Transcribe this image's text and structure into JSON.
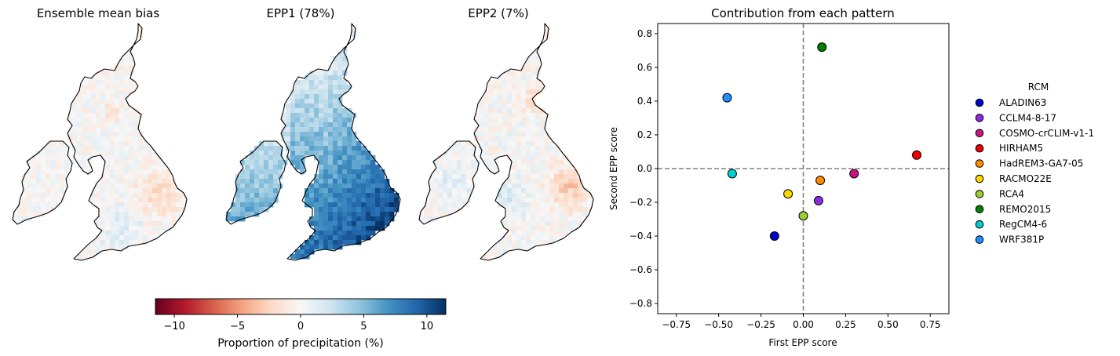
{
  "map_panels": [
    {
      "title": "Ensemble mean bias",
      "pattern": "bias"
    },
    {
      "title": "EPP1 (78%)",
      "pattern": "epp1"
    },
    {
      "title": "EPP2 (7%)",
      "pattern": "epp2"
    }
  ],
  "colorbar": {
    "label": "Proportion of precipitation (%)",
    "range": [
      -11.5,
      11.5
    ],
    "ticks": [
      -10,
      -5,
      0,
      5,
      10
    ],
    "tick_labels": [
      "−10",
      "−5",
      "0",
      "5",
      "10"
    ],
    "colormap": "RdBu",
    "colors": {
      "low": "#67001f",
      "mid": "#f7f7f7",
      "high": "#053061"
    }
  },
  "chart_data": {
    "type": "scatter",
    "title": "Contribution from each pattern",
    "xlabel": "First EPP score",
    "ylabel": "Second EPP score",
    "xlim": [
      -0.86,
      0.86
    ],
    "ylim": [
      -0.86,
      0.86
    ],
    "xticks": [
      -0.75,
      -0.5,
      -0.25,
      0.0,
      0.25,
      0.5,
      0.75
    ],
    "xtick_labels": [
      "−0.75",
      "−0.50",
      "−0.25",
      "0.00",
      "0.25",
      "0.50",
      "0.75"
    ],
    "yticks": [
      -0.8,
      -0.6,
      -0.4,
      -0.2,
      0.0,
      0.2,
      0.4,
      0.6,
      0.8
    ],
    "ytick_labels": [
      "−0.8",
      "−0.6",
      "−0.4",
      "−0.2",
      "0.0",
      "0.2",
      "0.4",
      "0.6",
      "0.8"
    ],
    "reference_lines": {
      "x": 0.0,
      "y": 0.0,
      "style": "dashed",
      "color": "#808080"
    },
    "grid": false,
    "legend": {
      "title": "RCM",
      "placement": "outside-right"
    },
    "series": [
      {
        "name": "ALADIN63",
        "color": "#0000cc",
        "x": -0.17,
        "y": -0.4
      },
      {
        "name": "CCLM4-8-17",
        "color": "#8a2be2",
        "x": 0.09,
        "y": -0.19
      },
      {
        "name": "COSMO-crCLIM-v1-1",
        "color": "#c71585",
        "x": 0.3,
        "y": -0.03
      },
      {
        "name": "HIRHAM5",
        "color": "#ee0000",
        "x": 0.67,
        "y": 0.08
      },
      {
        "name": "HadREM3-GA7-05",
        "color": "#ff8c00",
        "x": 0.1,
        "y": -0.07
      },
      {
        "name": "RACMO22E",
        "color": "#ffd700",
        "x": -0.09,
        "y": -0.15
      },
      {
        "name": "RCA4",
        "color": "#9acd32",
        "x": 0.0,
        "y": -0.28
      },
      {
        "name": "REMO2015",
        "color": "#008000",
        "x": 0.11,
        "y": 0.72
      },
      {
        "name": "RegCM4-6",
        "color": "#00ced1",
        "x": -0.42,
        "y": -0.03
      },
      {
        "name": "WRF381P",
        "color": "#1e90ff",
        "x": -0.45,
        "y": 0.42
      }
    ]
  }
}
